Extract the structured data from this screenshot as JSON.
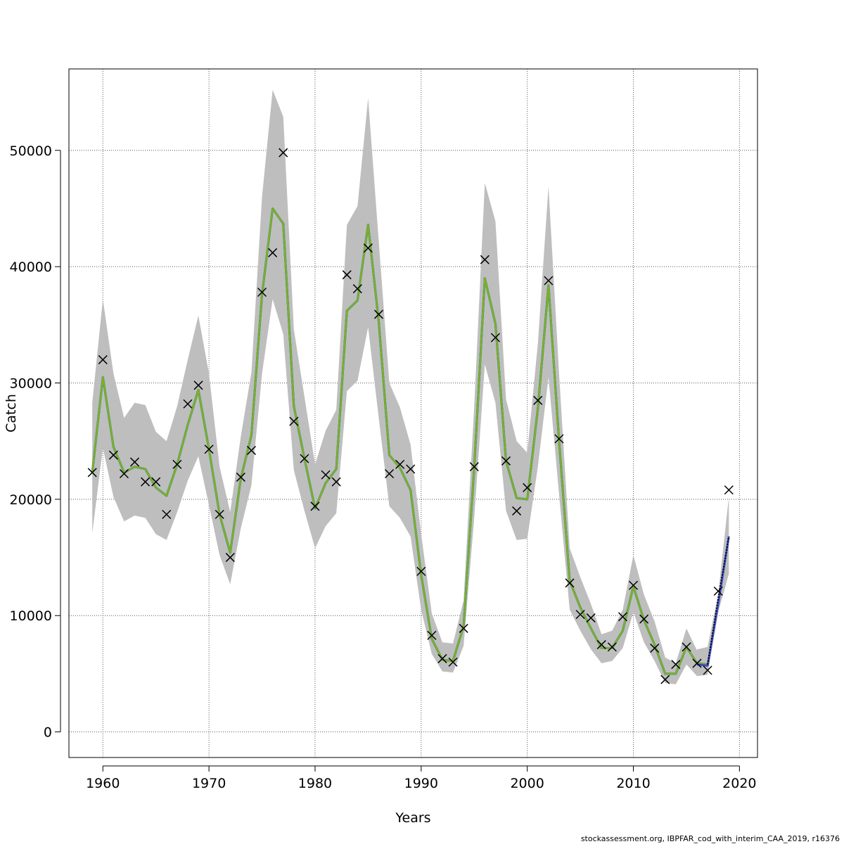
{
  "chart_data": {
    "type": "line",
    "xlabel": "Years",
    "ylabel": "Catch",
    "xlim": [
      1956.8,
      2021.7
    ],
    "ylim": [
      -2200,
      57000
    ],
    "x_ticks": [
      1960,
      1970,
      1980,
      1990,
      2000,
      2010,
      2020
    ],
    "y_ticks": [
      0,
      10000,
      20000,
      30000,
      40000,
      50000
    ],
    "grid": true,
    "legend": "none",
    "years": [
      1959,
      1960,
      1961,
      1962,
      1963,
      1964,
      1965,
      1966,
      1967,
      1968,
      1969,
      1970,
      1971,
      1972,
      1973,
      1974,
      1975,
      1976,
      1977,
      1978,
      1979,
      1980,
      1981,
      1982,
      1983,
      1984,
      1985,
      1986,
      1987,
      1988,
      1989,
      1990,
      1991,
      1992,
      1993,
      1994,
      1995,
      1996,
      1997,
      1998,
      1999,
      2000,
      2001,
      2002,
      2003,
      2004,
      2005,
      2006,
      2007,
      2008,
      2009,
      2010,
      2011,
      2012,
      2013,
      2014,
      2015,
      2016,
      2017
    ],
    "fitted": [
      22300,
      30500,
      24500,
      22300,
      22800,
      22600,
      21000,
      20300,
      23000,
      26400,
      29400,
      24300,
      18700,
      15400,
      21800,
      25500,
      37600,
      45000,
      43700,
      28000,
      23500,
      19200,
      21400,
      22600,
      36200,
      37100,
      43600,
      35300,
      23800,
      22700,
      20800,
      13500,
      8000,
      6200,
      6100,
      9100,
      22700,
      39000,
      35100,
      23300,
      20100,
      20000,
      27800,
      38400,
      25000,
      13000,
      10700,
      8900,
      7200,
      7200,
      8700,
      12500,
      9600,
      7500,
      5000,
      5000,
      7300,
      5900,
      5800
    ],
    "band_upper": [
      28300,
      37200,
      30800,
      27000,
      28300,
      28100,
      25800,
      25000,
      28000,
      32000,
      35800,
      30800,
      22800,
      18900,
      25400,
      30900,
      46000,
      55200,
      52900,
      34600,
      28800,
      23000,
      25900,
      27700,
      43600,
      45200,
      54500,
      42200,
      30000,
      27900,
      24700,
      17000,
      10200,
      7700,
      7600,
      11300,
      28000,
      47200,
      43900,
      28600,
      25000,
      24000,
      33400,
      46900,
      30800,
      15800,
      13300,
      11000,
      8400,
      8700,
      10500,
      15200,
      11800,
      9500,
      6400,
      5900,
      8900,
      7000,
      7300
    ],
    "band_lower": [
      17100,
      24400,
      20200,
      18100,
      18600,
      18400,
      17000,
      16500,
      18900,
      21600,
      23700,
      19500,
      15200,
      12700,
      17500,
      21200,
      30800,
      37200,
      34200,
      22500,
      19000,
      15800,
      17700,
      18800,
      29300,
      30200,
      34800,
      27000,
      19400,
      18400,
      16800,
      10500,
      6700,
      5200,
      5100,
      7400,
      18400,
      31600,
      28300,
      19000,
      16500,
      16600,
      22800,
      30500,
      20400,
      10500,
      8700,
      7100,
      5900,
      6100,
      7200,
      10300,
      7700,
      6100,
      4200,
      4100,
      5800,
      4800,
      4900
    ],
    "observed_years": [
      1959,
      1960,
      1961,
      1962,
      1963,
      1964,
      1965,
      1966,
      1967,
      1968,
      1969,
      1970,
      1971,
      1972,
      1973,
      1974,
      1975,
      1976,
      1977,
      1978,
      1979,
      1980,
      1981,
      1982,
      1983,
      1984,
      1985,
      1986,
      1987,
      1988,
      1989,
      1990,
      1991,
      1992,
      1993,
      1994,
      1995,
      1996,
      1997,
      1998,
      1999,
      2000,
      2001,
      2002,
      2003,
      2004,
      2005,
      2006,
      2007,
      2008,
      2009,
      2010,
      2011,
      2012,
      2013,
      2014,
      2015,
      2016,
      2017,
      2018,
      2019
    ],
    "observed": [
      22300,
      32000,
      23800,
      22200,
      23200,
      21500,
      21500,
      18700,
      23000,
      28200,
      29800,
      24300,
      18700,
      15000,
      21900,
      24200,
      37800,
      41200,
      49800,
      26700,
      23500,
      19400,
      22100,
      21500,
      39300,
      38100,
      41600,
      35900,
      22200,
      23000,
      22600,
      13800,
      8300,
      6300,
      6000,
      8900,
      22800,
      40600,
      33900,
      23300,
      19000,
      21000,
      28500,
      38800,
      25200,
      12800,
      10100,
      9800,
      7500,
      7300,
      9900,
      12600,
      9700,
      7200,
      4500,
      5800,
      7300,
      5900,
      5300,
      12100,
      20800
    ],
    "projection": {
      "years": [
        2016,
        2017,
        2018,
        2019
      ],
      "values": [
        5800,
        5700,
        11000,
        16800
      ],
      "upper": [
        7100,
        7300,
        11900,
        20200
      ],
      "lower": [
        4800,
        5000,
        10300,
        13600
      ]
    },
    "interim_dashed": {
      "years": [
        2017,
        2018,
        2019
      ],
      "values": [
        5800,
        11500,
        16800
      ]
    },
    "colors": {
      "band": "#bebebe",
      "fit_main": "#7fae26",
      "fit_alt1": "#2aa198",
      "fit_alt2": "#223a7a",
      "fit_alt3": "#3b4cc0",
      "observed_marker": "#000000",
      "grid": "#555555"
    }
  },
  "footer": {
    "text": "stockassessment.org, IBPFAR_cod_with_interim_CAA_2019, r16376"
  }
}
